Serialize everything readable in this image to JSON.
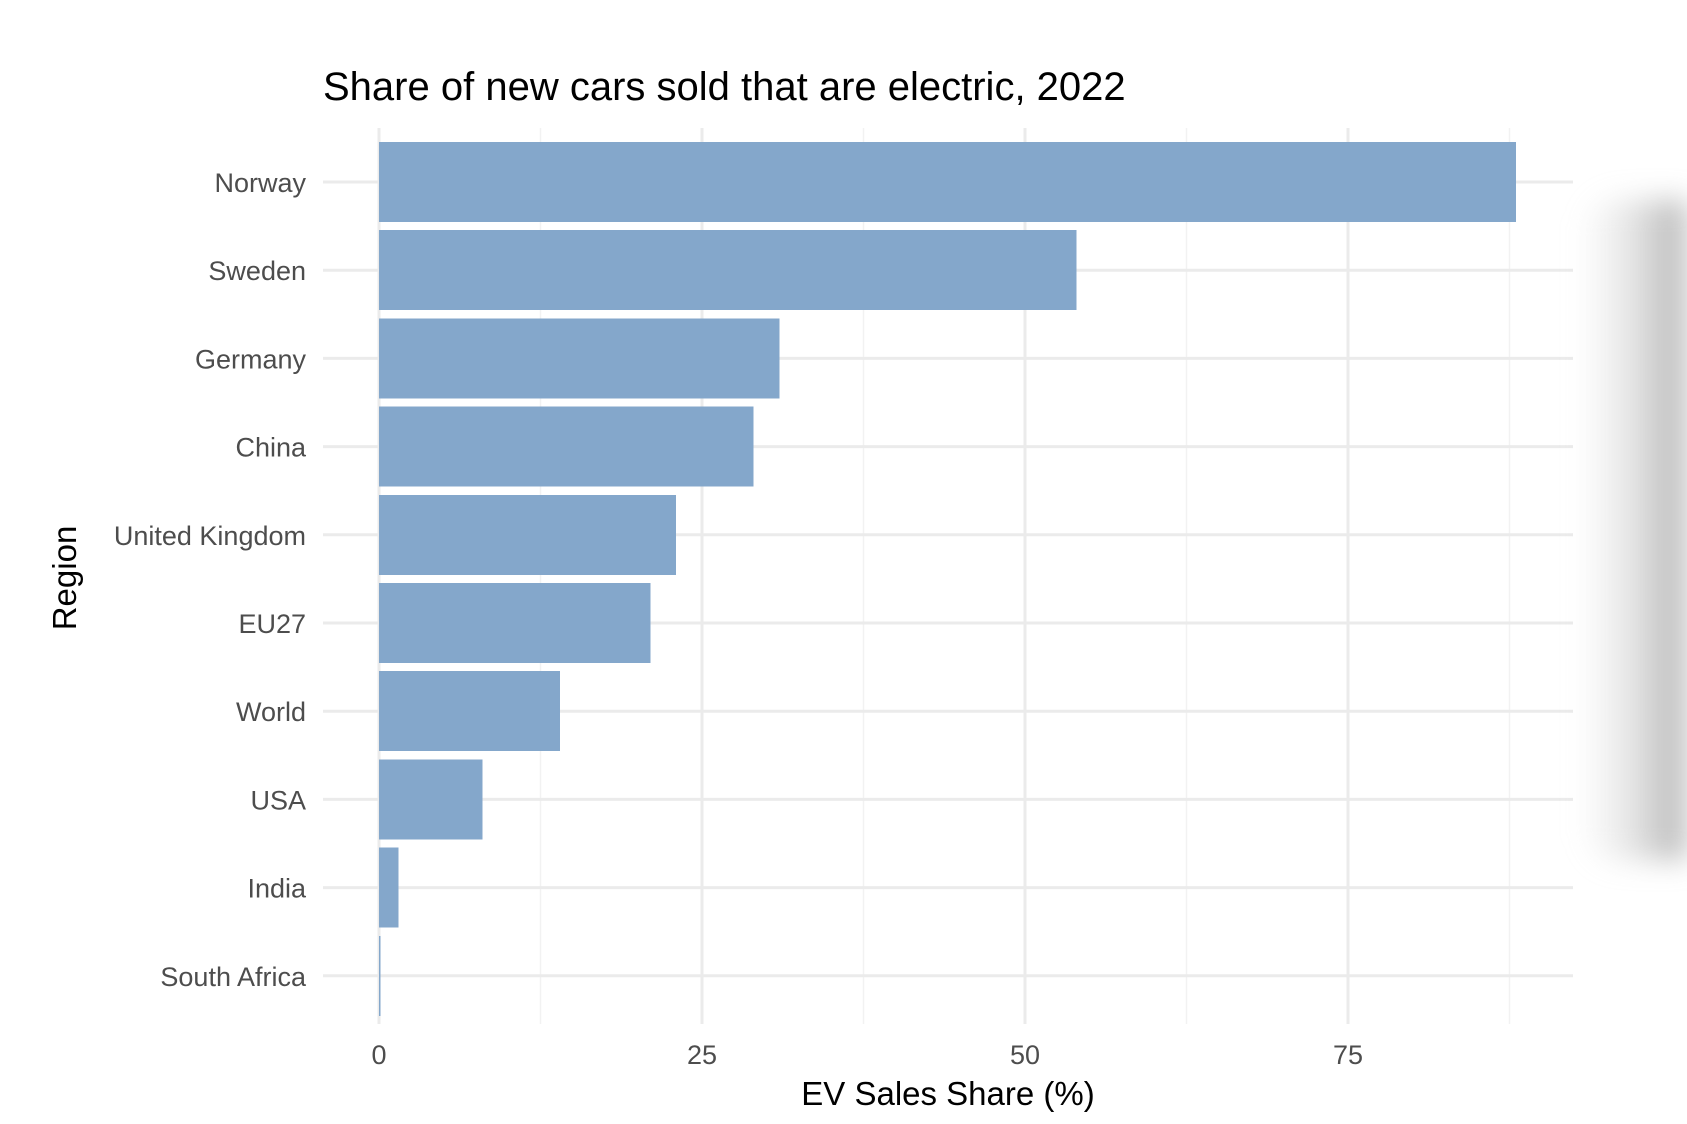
{
  "chart_data": {
    "type": "bar",
    "orientation": "horizontal",
    "title": "Share of new cars sold that are electric, 2022",
    "xlabel": "EV Sales Share (%)",
    "ylabel": "Region",
    "categories": [
      "Norway",
      "Sweden",
      "Germany",
      "China",
      "United Kingdom",
      "EU27",
      "World",
      "USA",
      "India",
      "South Africa"
    ],
    "values": [
      88,
      54,
      31,
      29,
      23,
      21,
      14,
      8,
      1.5,
      0.1
    ],
    "xlim": [
      0,
      92
    ],
    "xticks": [
      0,
      25,
      50,
      75
    ],
    "xtick_labels": [
      "0",
      "25",
      "50",
      "75"
    ],
    "grid": true,
    "colors": {
      "bar": "#84A7CB",
      "grid_major": "#ebebeb",
      "grid_minor": "#f2f2f2",
      "tick_text": "#4d4d4d",
      "title_text": "#000000"
    }
  }
}
